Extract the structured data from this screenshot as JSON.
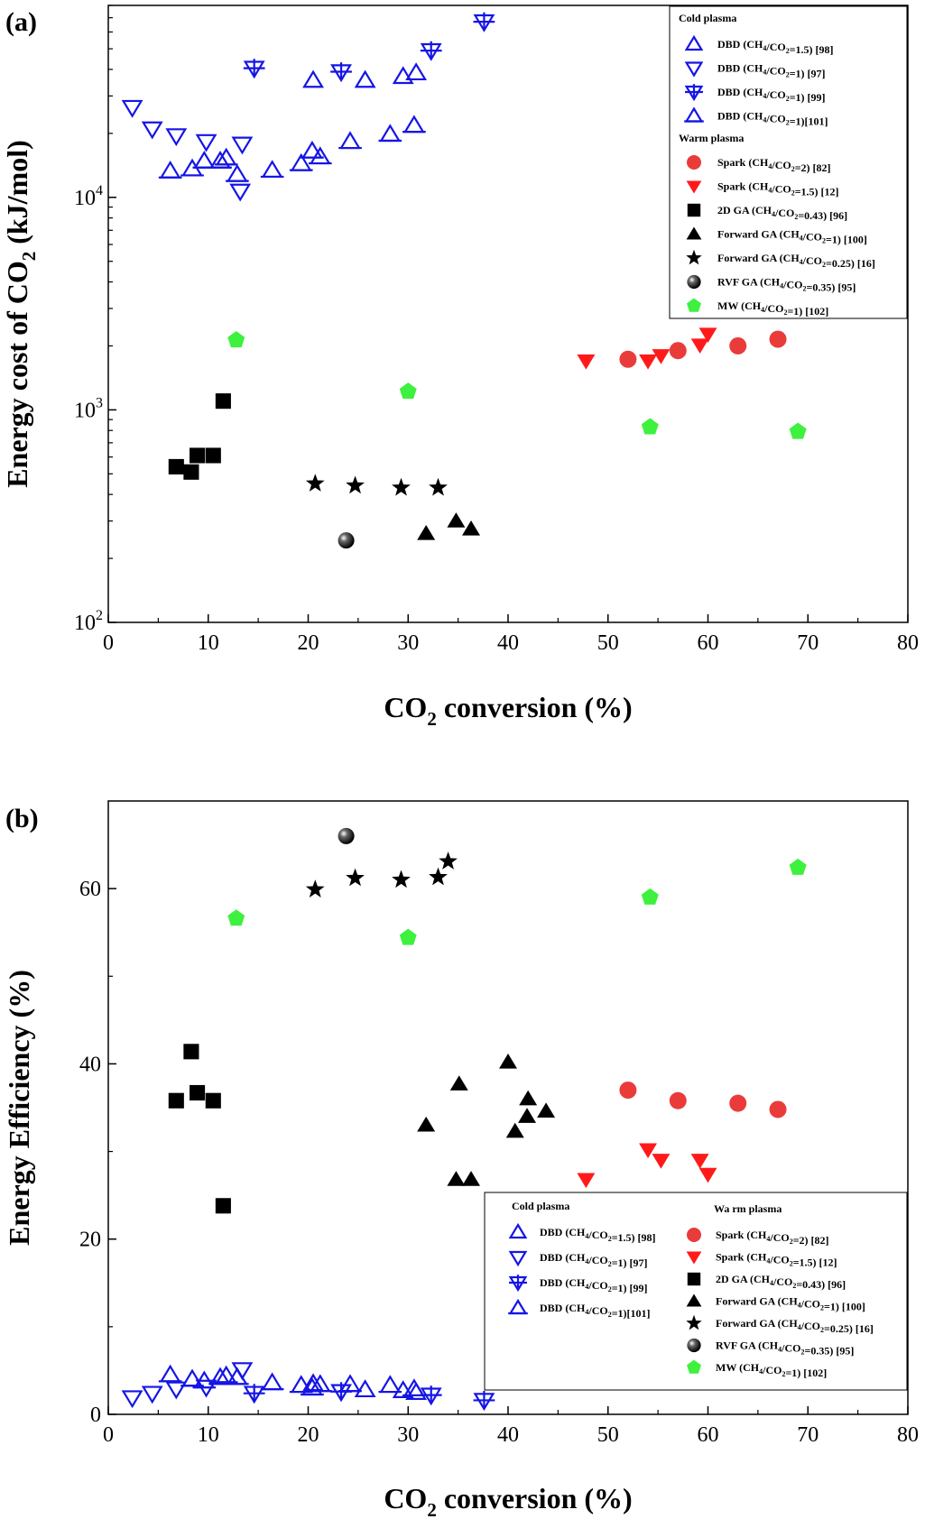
{
  "colors": {
    "dbd": "#1515e6",
    "spark2": "#ea3b3b",
    "spark15": "#ff1a1a",
    "black": "#000000",
    "mw": "#3ef13e",
    "axis": "#000000"
  },
  "series_defs": [
    {
      "key": "dbd98",
      "label": "DBD (CH4/CO2=1.5) [98]",
      "marker": "open-triangle-up-icon",
      "color": "#1515e6"
    },
    {
      "key": "dbd97",
      "label": "DBD (CH4/CO2=1) [97]",
      "marker": "open-triangle-down-icon",
      "color": "#1515e6"
    },
    {
      "key": "dbd99",
      "label": "DBD (CH4/CO2=1) [99]",
      "marker": "open-triangle-down-bar-icon",
      "color": "#1515e6"
    },
    {
      "key": "dbd101",
      "label": "DBD (CH4/CO2=1)[101]",
      "marker": "open-triangle-up-bar-icon",
      "color": "#1515e6"
    },
    {
      "key": "spark82",
      "label": "Spark (CH4/CO2=2) [82]",
      "marker": "filled-circle-icon",
      "color": "#ea3b3b"
    },
    {
      "key": "spark12",
      "label": "Spark (CH4/CO2=1.5) [12]",
      "marker": "filled-triangle-down-icon",
      "color": "#ff1a1a"
    },
    {
      "key": "ga96",
      "label": "2D GA (CH4/CO2=0.43) [96]",
      "marker": "filled-square-icon",
      "color": "#000000"
    },
    {
      "key": "ga100",
      "label": "Forward GA (CH4/CO2=1) [100]",
      "marker": "filled-triangle-up-icon",
      "color": "#000000"
    },
    {
      "key": "ga16",
      "label": "Forward GA (CH4/CO2=0.25) [16]",
      "marker": "filled-star-icon",
      "color": "#000000"
    },
    {
      "key": "rvf95",
      "label": "RVF GA (CH4/CO2=0.35) [95]",
      "marker": "shaded-sphere-icon",
      "color": "#000000"
    },
    {
      "key": "mw102",
      "label": "MW (CH4/CO2=1) [102]",
      "marker": "filled-pentagon-icon",
      "color": "#3ef13e"
    }
  ],
  "chart_data": [
    {
      "type": "scatter",
      "panel_label": "(a)",
      "xlabel": "CO2 conversion (%)",
      "ylabel": "Energy cost of CO2 (kJ/mol)",
      "xlim": [
        0,
        80
      ],
      "ylim": [
        100,
        80000
      ],
      "yscale": "log",
      "x_ticks": [
        0,
        10,
        20,
        30,
        40,
        50,
        60,
        70,
        80
      ],
      "x_tick_labels": [
        "0",
        "10",
        "20",
        "30",
        "40",
        "50",
        "60",
        "70",
        "80"
      ],
      "y_ticks": [
        100,
        1000,
        10000
      ],
      "y_tick_labels": [
        "10",
        "10",
        "10"
      ],
      "y_tick_exps": [
        "2",
        "3",
        "4"
      ],
      "legend": {
        "position": "top-right",
        "groups": [
          "Cold plasma",
          "Warm plasma"
        ]
      },
      "series": [
        {
          "key": "dbd98",
          "name": "DBD (CH4/CO2=1.5) [98]",
          "x": [
            20.5,
            25.7,
            29.5,
            30.8
          ],
          "y": [
            35500,
            35500,
            37000,
            38500
          ]
        },
        {
          "key": "dbd97",
          "name": "DBD (CH4/CO2=1) [97]",
          "x": [
            2.4,
            4.4,
            6.8,
            9.8,
            13.4,
            13.2
          ],
          "y": [
            26500,
            21000,
            19500,
            18300,
            17800,
            10700
          ]
        },
        {
          "key": "dbd99",
          "name": "DBD (CH4/CO2=1) [99]",
          "x": [
            14.6,
            23.3,
            32.3,
            37.6
          ],
          "y": [
            40500,
            39000,
            49000,
            67000
          ]
        },
        {
          "key": "dbd101",
          "name": "DBD (CH4/CO2=1)[101]",
          "x": [
            6.2,
            8.4,
            9.6,
            11.2,
            11.8,
            12.9,
            16.4,
            19.3,
            20.4,
            21.2,
            24.2,
            28.2,
            30.6
          ],
          "y": [
            13300,
            13600,
            14800,
            14800,
            15300,
            12800,
            13400,
            14400,
            16500,
            15500,
            18300,
            19800,
            21800
          ]
        },
        {
          "key": "spark82",
          "name": "Spark (CH4/CO2=2) [82]",
          "x": [
            52.0,
            57.0,
            63.0,
            67.0
          ],
          "y": [
            1730,
            1900,
            2000,
            2150
          ]
        },
        {
          "key": "spark12",
          "name": "Spark (CH4/CO2=1.5) [12]",
          "x": [
            47.8,
            54.0,
            55.3,
            59.2,
            60.0
          ],
          "y": [
            1700,
            1700,
            1800,
            2020,
            2270
          ]
        },
        {
          "key": "ga96",
          "name": "2D GA (CH4/CO2=0.43) [96]",
          "x": [
            6.8,
            8.3,
            8.9,
            10.5,
            11.5
          ],
          "y": [
            540,
            510,
            610,
            610,
            1100
          ]
        },
        {
          "key": "ga100",
          "name": "Forward GA (CH4/CO2=1) [100]",
          "x": [
            31.8,
            34.8,
            36.3
          ],
          "y": [
            262,
            300,
            275
          ]
        },
        {
          "key": "ga16",
          "name": "Forward GA (CH4/CO2=0.25) [16]",
          "x": [
            20.7,
            24.7,
            29.3,
            33.0
          ],
          "y": [
            450,
            440,
            430,
            430
          ]
        },
        {
          "key": "rvf95",
          "name": "RVF GA (CH4/CO2=0.35) [95]",
          "x": [
            23.8
          ],
          "y": [
            243
          ]
        },
        {
          "key": "mw102",
          "name": "MW (CH4/CO2=1) [102]",
          "x": [
            12.8,
            30.0,
            54.2,
            69.0
          ],
          "y": [
            2130,
            1220,
            830,
            790
          ]
        }
      ]
    },
    {
      "type": "scatter",
      "panel_label": "(b)",
      "xlabel": "CO2 conversion (%)",
      "ylabel": "Energy Efficiency (%)",
      "xlim": [
        0,
        80
      ],
      "ylim": [
        0,
        70
      ],
      "yscale": "linear",
      "x_ticks": [
        0,
        10,
        20,
        30,
        40,
        50,
        60,
        70,
        80
      ],
      "x_tick_labels": [
        "0",
        "10",
        "20",
        "30",
        "40",
        "50",
        "60",
        "70",
        "80"
      ],
      "y_ticks": [
        0,
        20,
        40,
        60
      ],
      "y_tick_labels": [
        "0",
        "20",
        "40",
        "60"
      ],
      "legend": {
        "position": "bottom-right",
        "groups": [
          "Cold plasma",
          "Wa rm plasma"
        ]
      },
      "series": [
        {
          "key": "dbd98",
          "name": "DBD (CH4/CO2=1.5) [98]",
          "x": [
            20.5,
            25.7,
            29.5,
            30.8
          ],
          "y": [
            3.5,
            2.8,
            2.7,
            2.5
          ]
        },
        {
          "key": "dbd97",
          "name": "DBD (CH4/CO2=1) [97]",
          "x": [
            2.4,
            4.4,
            6.8,
            9.8,
            13.4
          ],
          "y": [
            1.9,
            2.4,
            2.9,
            3.1,
            5.1
          ]
        },
        {
          "key": "dbd99",
          "name": "DBD (CH4/CO2=1) [99]",
          "x": [
            14.6,
            23.3,
            32.3,
            37.6
          ],
          "y": [
            2.4,
            2.6,
            2.2,
            1.6
          ]
        },
        {
          "key": "dbd101",
          "name": "DBD (CH4/CO2=1)[101]",
          "x": [
            6.2,
            8.4,
            9.6,
            11.2,
            11.8,
            12.9,
            16.4,
            19.3,
            20.4,
            21.2,
            24.2,
            28.2,
            30.6
          ],
          "y": [
            4.5,
            4.0,
            3.8,
            4.2,
            4.4,
            4.2,
            3.6,
            3.3,
            3.0,
            3.4,
            3.4,
            3.3,
            2.9
          ]
        },
        {
          "key": "spark82",
          "name": "Spark (CH4/CO2=2) [82]",
          "x": [
            52.0,
            57.0,
            63.0,
            67.0
          ],
          "y": [
            37.0,
            35.8,
            35.5,
            34.8
          ]
        },
        {
          "key": "spark12",
          "name": "Spark (CH4/CO2=1.5) [12]",
          "x": [
            47.8,
            54.0,
            55.3,
            59.2,
            60.0
          ],
          "y": [
            26.8,
            30.2,
            29.0,
            29.0,
            27.4
          ]
        },
        {
          "key": "ga96",
          "name": "2D GA (CH4/CO2=0.43) [96]",
          "x": [
            6.8,
            8.3,
            8.9,
            10.5,
            11.5
          ],
          "y": [
            35.8,
            41.4,
            36.7,
            35.8,
            23.8
          ]
        },
        {
          "key": "ga100",
          "name": "Forward GA (CH4/CO2=1) [100]",
          "x": [
            31.8,
            34.8,
            35.1,
            36.3,
            40.0,
            40.7,
            41.9,
            42.0,
            43.8
          ],
          "y": [
            33.0,
            26.8,
            37.7,
            26.8,
            40.2,
            32.3,
            34.0,
            36.0,
            34.6
          ]
        },
        {
          "key": "ga16",
          "name": "Forward GA (CH4/CO2=0.25) [16]",
          "x": [
            20.7,
            24.7,
            29.3,
            33.0,
            34.0
          ],
          "y": [
            59.9,
            61.2,
            61.0,
            61.3,
            63.1
          ]
        },
        {
          "key": "rvf95",
          "name": "RVF GA (CH4/CO2=0.35) [95]",
          "x": [
            23.8
          ],
          "y": [
            66.0
          ]
        },
        {
          "key": "mw102",
          "name": "MW (CH4/CO2=1) [102]",
          "x": [
            12.8,
            30.0,
            54.2,
            69.0
          ],
          "y": [
            56.6,
            54.4,
            59.0,
            62.4
          ]
        }
      ]
    }
  ]
}
